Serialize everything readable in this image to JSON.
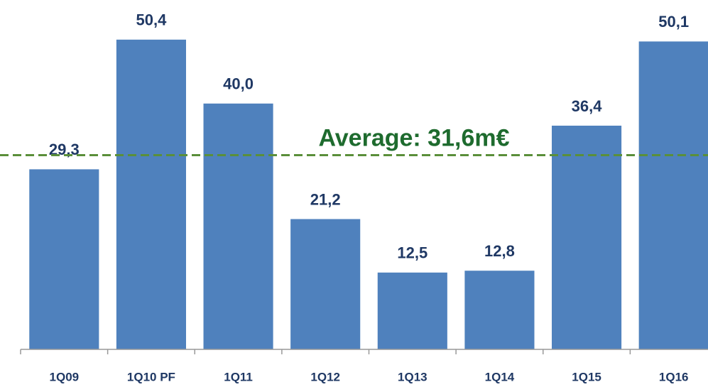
{
  "chart_data": {
    "type": "bar",
    "categories": [
      "1Q09",
      "1Q10 PF",
      "1Q11",
      "1Q12",
      "1Q13",
      "1Q14",
      "1Q15",
      "1Q16"
    ],
    "values": [
      29.3,
      50.4,
      40.0,
      21.2,
      12.5,
      12.8,
      36.4,
      50.1
    ],
    "value_labels": [
      "29,3",
      "50,4",
      "40,0",
      "21,2",
      "12,5",
      "12,8",
      "36,4",
      "50,1"
    ],
    "color": "#4f81bd",
    "ylim": [
      0,
      55
    ],
    "average": {
      "value": 31.6,
      "label": "Average: 31,6m€",
      "color": "#5a8f3a"
    }
  }
}
